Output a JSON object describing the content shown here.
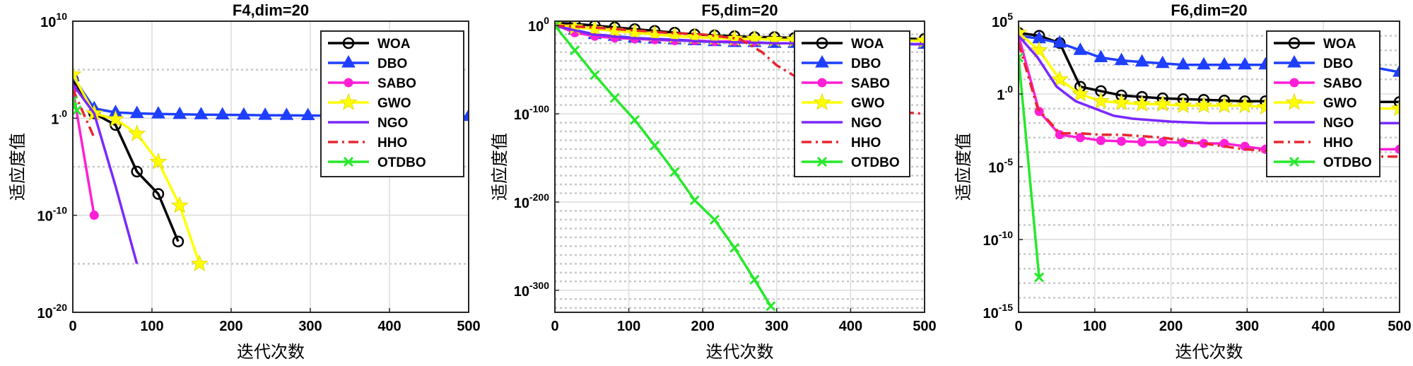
{
  "chart_data": [
    {
      "type": "line",
      "title": "F4,dim=20",
      "xlabel": "迭代次数",
      "ylabel": "适应度值",
      "yscale": "log",
      "xlim": [
        0,
        500
      ],
      "ylim_exp": [
        -20,
        10
      ],
      "x_ticks": [
        0,
        100,
        200,
        300,
        400,
        500
      ],
      "y_ticks": [
        {
          "exp": -20,
          "base": "10",
          "sup": "-20"
        },
        {
          "exp": -10,
          "base": "10",
          "sup": "-10"
        },
        {
          "exp": 0,
          "base": "1",
          "sup": ".0"
        },
        {
          "exp": 10,
          "base": "10",
          "sup": "10"
        }
      ],
      "grid_major_exp": [
        -10,
        0,
        10
      ],
      "grid_minor_exp": [
        -15,
        -5,
        5
      ],
      "series": [
        {
          "name": "WOA",
          "x": [
            0,
            27,
            54,
            81,
            108,
            133
          ],
          "y_log10": [
            4,
            0.5,
            -0.7,
            -5.5,
            -7.8,
            -12.7
          ]
        },
        {
          "name": "DBO",
          "x": [
            0,
            27,
            54,
            81,
            108,
            135,
            162,
            189,
            216,
            243,
            270,
            297,
            324,
            351,
            378,
            405,
            432,
            459,
            500
          ],
          "y_log10": [
            4.3,
            1,
            0.6,
            0.5,
            0.45,
            0.4,
            0.37,
            0.35,
            0.33,
            0.31,
            0.3,
            0.28,
            0.27,
            0.26,
            0.25,
            0.24,
            0.23,
            0.22,
            0.2
          ]
        },
        {
          "name": "SABO",
          "x": [
            0,
            27
          ],
          "y_log10": [
            3,
            -10
          ]
        },
        {
          "name": "GWO",
          "x": [
            0,
            27,
            54,
            81,
            108,
            135,
            160
          ],
          "y_log10": [
            4.5,
            0.5,
            -0.1,
            -1.6,
            -4.5,
            -9,
            -15
          ]
        },
        {
          "name": "NGO",
          "x": [
            0,
            27,
            54,
            81
          ],
          "y_log10": [
            3.5,
            0.5,
            -7,
            -15
          ]
        },
        {
          "name": "HHO",
          "x": [
            0,
            27
          ],
          "y_log10": [
            3,
            -2
          ]
        },
        {
          "name": "OTDBO",
          "x": [
            0,
            5
          ],
          "y_log10": [
            1.8,
            0.8
          ]
        }
      ]
    },
    {
      "type": "line",
      "title": "F5,dim=20",
      "xlabel": "迭代次数",
      "ylabel": "适应度值",
      "yscale": "log",
      "xlim": [
        0,
        500
      ],
      "ylim_exp": [
        -325,
        5
      ],
      "x_ticks": [
        0,
        100,
        200,
        300,
        400,
        500
      ],
      "y_ticks": [
        {
          "exp": 0,
          "base": "10",
          "sup": "0"
        },
        {
          "exp": -100,
          "base": "10",
          "sup": "-100"
        },
        {
          "exp": -200,
          "base": "10",
          "sup": "-200"
        },
        {
          "exp": -300,
          "base": "10",
          "sup": "-300"
        }
      ],
      "grid_major_exp": [
        -100,
        -200,
        -300
      ],
      "grid_minor_exp": [
        -10,
        -20,
        -30,
        -40,
        -50,
        -60,
        -70,
        -80,
        -90,
        -110,
        -120,
        -130,
        -140,
        -150,
        -160,
        -170,
        -180,
        -190,
        -210,
        -220,
        -230,
        -240,
        -250,
        -260,
        -270,
        -280,
        -290,
        -310,
        -320
      ],
      "series": [
        {
          "name": "WOA",
          "x": [
            0,
            27,
            54,
            81,
            108,
            135,
            162,
            189,
            216,
            243,
            270,
            297,
            324,
            351,
            378,
            405,
            432,
            459,
            500
          ],
          "y_log10": [
            3,
            2,
            0,
            -2,
            -4,
            -6,
            -8,
            -10,
            -11,
            -12,
            -13,
            -13,
            -14,
            -14,
            -14,
            -14,
            -15,
            -15,
            -15
          ]
        },
        {
          "name": "DBO",
          "x": [
            0,
            27,
            54,
            81,
            108,
            135,
            162,
            189,
            216,
            243,
            270,
            297,
            324,
            351,
            378,
            405,
            432,
            459,
            500
          ],
          "y_log10": [
            2,
            -5,
            -10,
            -12,
            -14,
            -15,
            -16,
            -17,
            -18,
            -19,
            -19,
            -20,
            -20,
            -20,
            -20,
            -20,
            -21,
            -21,
            -21
          ]
        },
        {
          "name": "SABO",
          "x": [
            0,
            27,
            54,
            81,
            108,
            135,
            162,
            189,
            216,
            243,
            270
          ],
          "y_log10": [
            1,
            -8,
            -12,
            -14,
            -15,
            -16,
            -17,
            -17,
            -18,
            -18,
            -18
          ]
        },
        {
          "name": "GWO",
          "x": [
            0,
            27,
            54,
            81,
            108,
            135,
            162,
            189,
            216,
            243,
            270,
            297,
            324,
            351,
            378,
            405,
            432,
            459,
            500
          ],
          "y_log10": [
            2,
            -2,
            -4,
            -6,
            -8,
            -10,
            -12,
            -13,
            -14,
            -15,
            -15,
            -16,
            -16,
            -16,
            -17,
            -17,
            -17,
            -17,
            -17
          ]
        },
        {
          "name": "NGO",
          "x": [
            0,
            50,
            100,
            150,
            200,
            250,
            300,
            350,
            400,
            450,
            500
          ],
          "y_log10": [
            0,
            -10,
            -14,
            -16,
            -18,
            -19,
            -20,
            -20,
            -21,
            -21,
            -21
          ]
        },
        {
          "name": "HHO",
          "x": [
            0,
            50,
            100,
            150,
            200,
            250,
            280,
            300,
            330,
            360,
            400,
            450,
            500
          ],
          "y_log10": [
            0,
            -2,
            -5,
            -8,
            -10,
            -15,
            -30,
            -45,
            -60,
            -75,
            -90,
            -97,
            -100
          ]
        },
        {
          "name": "OTDBO",
          "x": [
            0,
            27,
            54,
            81,
            108,
            135,
            162,
            189,
            216,
            243,
            270,
            292
          ],
          "y_log10": [
            0,
            -28,
            -56,
            -82,
            -107,
            -136,
            -166,
            -198,
            -220,
            -252,
            -288,
            -318
          ]
        }
      ]
    },
    {
      "type": "line",
      "title": "F6,dim=20",
      "xlabel": "迭代次数",
      "ylabel": "适应度值",
      "yscale": "log",
      "xlim": [
        0,
        500
      ],
      "ylim_exp": [
        -15,
        5
      ],
      "x_ticks": [
        0,
        100,
        200,
        300,
        400,
        500
      ],
      "y_ticks": [
        {
          "exp": -15,
          "base": "10",
          "sup": "-15"
        },
        {
          "exp": -10,
          "base": "10",
          "sup": "-10"
        },
        {
          "exp": -5,
          "base": "10",
          "sup": "-5"
        },
        {
          "exp": 0,
          "base": "1",
          "sup": ".0"
        },
        {
          "exp": 5,
          "base": "10",
          "sup": "5"
        }
      ],
      "grid_major_exp": [
        -10,
        -5,
        0
      ],
      "grid_minor_exp": [
        -14,
        -13,
        -12,
        -11,
        -9,
        -8,
        -7,
        -6,
        -4,
        -3,
        -2,
        -1,
        1,
        2,
        3,
        4
      ],
      "series": [
        {
          "name": "WOA",
          "x": [
            0,
            27,
            54,
            81,
            108,
            135,
            162,
            189,
            216,
            243,
            270,
            297,
            324,
            351,
            378,
            405,
            432,
            459,
            500
          ],
          "y_log10": [
            4.2,
            4,
            3.5,
            0.5,
            0.2,
            -0.1,
            -0.2,
            -0.3,
            -0.35,
            -0.4,
            -0.45,
            -0.5,
            -0.5,
            -0.5,
            -0.55,
            -0.55,
            -0.55,
            -0.55,
            -0.55
          ]
        },
        {
          "name": "DBO",
          "x": [
            0,
            27,
            54,
            81,
            108,
            135,
            162,
            189,
            216,
            243,
            270,
            297,
            324,
            351,
            378,
            405,
            432,
            459,
            500
          ],
          "y_log10": [
            4,
            3.8,
            3.5,
            3,
            2.5,
            2.3,
            2.2,
            2.1,
            2,
            2,
            2,
            2,
            2,
            2,
            2,
            2,
            2,
            1.9,
            1.5
          ]
        },
        {
          "name": "SABO",
          "x": [
            0,
            27,
            54,
            81,
            108,
            135,
            162,
            189,
            216,
            243,
            270,
            297,
            324,
            351,
            378,
            405,
            432,
            459,
            500
          ],
          "y_log10": [
            4,
            -1.2,
            -2.8,
            -3,
            -3.2,
            -3.25,
            -3.3,
            -3.3,
            -3.35,
            -3.4,
            -3.4,
            -3.6,
            -3.8,
            -3.8,
            -3.8,
            -3.8,
            -3.8,
            -3.8,
            -3.8
          ]
        },
        {
          "name": "GWO",
          "x": [
            0,
            27,
            54,
            81,
            108,
            135,
            162,
            189,
            216,
            243,
            270,
            297,
            324,
            351,
            378,
            405,
            432,
            459,
            500
          ],
          "y_log10": [
            4.2,
            3,
            1,
            0,
            -0.5,
            -0.6,
            -0.7,
            -0.7,
            -0.8,
            -0.8,
            -0.8,
            -0.8,
            -0.9,
            -0.9,
            -0.9,
            -0.9,
            -0.9,
            -1,
            -1
          ]
        },
        {
          "name": "NGO",
          "x": [
            0,
            25,
            50,
            75,
            100,
            125,
            150,
            175,
            200,
            250,
            300,
            350,
            400,
            450,
            500
          ],
          "y_log10": [
            4,
            2.5,
            0.5,
            -0.5,
            -1,
            -1.5,
            -1.7,
            -1.8,
            -1.9,
            -2,
            -2,
            -2,
            -2,
            -2,
            -2
          ]
        },
        {
          "name": "HHO",
          "x": [
            0,
            25,
            54,
            81,
            108,
            135,
            162,
            189,
            216,
            243,
            270,
            297,
            324,
            351,
            378,
            405,
            432,
            459,
            500
          ],
          "y_log10": [
            3.5,
            -1,
            -2.7,
            -2.7,
            -2.8,
            -2.8,
            -2.9,
            -3,
            -3.2,
            -3.4,
            -3.6,
            -3.8,
            -3.9,
            -4,
            -4.1,
            -4.2,
            -4.2,
            -4.3,
            -4.3
          ]
        },
        {
          "name": "OTDBO",
          "x": [
            0,
            27
          ],
          "y_log10": [
            2.5,
            -12.6
          ]
        }
      ]
    }
  ],
  "legend": {
    "placement": "top-right",
    "entries": [
      {
        "name": "WOA",
        "color": "#000000",
        "marker": "circle",
        "dash": "solid"
      },
      {
        "name": "DBO",
        "color": "#1f3fff",
        "marker": "triangle",
        "dash": "solid"
      },
      {
        "name": "SABO",
        "color": "#ff1fd6",
        "marker": "dot",
        "dash": "solid"
      },
      {
        "name": "GWO",
        "color": "#ffff00",
        "marker": "star",
        "dash": "solid"
      },
      {
        "name": "NGO",
        "color": "#7a28ff",
        "marker": "none",
        "dash": "solid"
      },
      {
        "name": "HHO",
        "color": "#e8262e",
        "marker": "none",
        "dash": "dashdot"
      },
      {
        "name": "OTDBO",
        "color": "#27e82b",
        "marker": "cross",
        "dash": "solid"
      }
    ]
  }
}
